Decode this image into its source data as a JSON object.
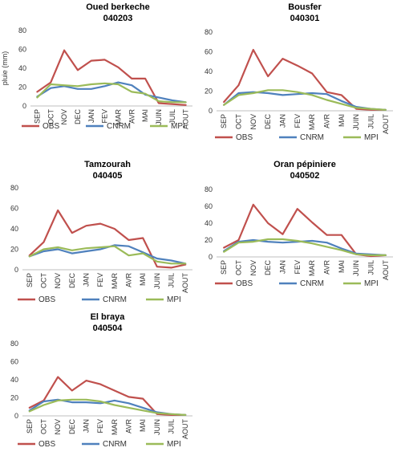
{
  "chart_data": [
    {
      "type": "line",
      "title": "Oued berkeche",
      "subtitle": "040203",
      "ylabel": "pluie (mm)",
      "xlabel": "",
      "ylim": [
        0,
        80
      ],
      "yticks": [
        0,
        20,
        40,
        60,
        80
      ],
      "categories": [
        "SEP",
        "OCT",
        "NOV",
        "DEC",
        "JAN",
        "FEV",
        "MAR",
        "AVR",
        "MAI",
        "JUIN",
        "JUIL",
        "AOUT"
      ],
      "series": [
        {
          "name": "OBS",
          "color": "#C0504D",
          "values": [
            15,
            25,
            59,
            38,
            48,
            49,
            41,
            29,
            29,
            3,
            2,
            1
          ]
        },
        {
          "name": "CNRM",
          "color": "#4F81BD",
          "values": [
            10,
            19,
            21,
            18,
            18,
            21,
            25,
            22,
            12,
            9,
            6,
            4
          ]
        },
        {
          "name": "MPI",
          "color": "#9BBB59",
          "values": [
            9,
            23,
            22,
            21,
            23,
            24,
            23,
            15,
            13,
            5,
            4,
            4
          ]
        }
      ],
      "legend": "bottom"
    },
    {
      "type": "line",
      "title": "Bousfer",
      "subtitle": "040301",
      "ylabel": "",
      "xlabel": "",
      "ylim": [
        0,
        80
      ],
      "yticks": [
        0,
        20,
        40,
        60,
        80
      ],
      "categories": [
        "SEP",
        "OCT",
        "NOV",
        "DEC",
        "JAN",
        "FEV",
        "MAR",
        "AVR",
        "MAI",
        "JUIN",
        "JUIL",
        "AOUT"
      ],
      "series": [
        {
          "name": "OBS",
          "color": "#C0504D",
          "values": [
            9,
            26,
            62,
            35,
            53,
            46,
            38,
            19,
            16,
            2,
            1,
            1
          ]
        },
        {
          "name": "CNRM",
          "color": "#4F81BD",
          "values": [
            6,
            18,
            19,
            18,
            16,
            17,
            18,
            17,
            10,
            4,
            2,
            1
          ]
        },
        {
          "name": "MPI",
          "color": "#9BBB59",
          "values": [
            6,
            16,
            18,
            21,
            21,
            19,
            16,
            11,
            7,
            3,
            2,
            1
          ]
        }
      ],
      "legend": "bottom"
    },
    {
      "type": "line",
      "title": "Tamzourah",
      "subtitle": "040405",
      "ylabel": "",
      "xlabel": "",
      "ylim": [
        0,
        80
      ],
      "yticks": [
        0,
        20,
        40,
        60,
        80
      ],
      "categories": [
        "SEP",
        "OCT",
        "NOV",
        "DEC",
        "JAN",
        "FEV",
        "MAR",
        "AVR",
        "MAI",
        "JUIN",
        "JUIL",
        "AOUT"
      ],
      "series": [
        {
          "name": "OBS",
          "color": "#C0504D",
          "values": [
            14,
            27,
            58,
            36,
            43,
            45,
            40,
            29,
            31,
            3,
            2,
            5
          ]
        },
        {
          "name": "CNRM",
          "color": "#4F81BD",
          "values": [
            13,
            18,
            20,
            16,
            18,
            20,
            24,
            23,
            17,
            11,
            9,
            6
          ]
        },
        {
          "name": "MPI",
          "color": "#9BBB59",
          "values": [
            13,
            20,
            22,
            19,
            21,
            22,
            23,
            14,
            16,
            8,
            6,
            6
          ]
        }
      ],
      "legend": "bottom"
    },
    {
      "type": "line",
      "title": "Oran pépiniere",
      "subtitle": "040502",
      "ylabel": "",
      "xlabel": "",
      "ylim": [
        0,
        80
      ],
      "yticks": [
        0,
        20,
        40,
        60,
        80
      ],
      "categories": [
        "SEP",
        "OCT",
        "NOV",
        "DEC",
        "JAN",
        "FEV",
        "MAR",
        "AVR",
        "MAI",
        "JUIN",
        "JUIL",
        "AOUT"
      ],
      "series": [
        {
          "name": "OBS",
          "color": "#C0504D",
          "values": [
            11,
            20,
            62,
            40,
            27,
            57,
            41,
            26,
            26,
            3,
            1,
            2
          ]
        },
        {
          "name": "CNRM",
          "color": "#4F81BD",
          "values": [
            7,
            18,
            20,
            18,
            17,
            18,
            19,
            17,
            10,
            4,
            3,
            2
          ]
        },
        {
          "name": "MPI",
          "color": "#9BBB59",
          "values": [
            6,
            17,
            18,
            21,
            21,
            19,
            16,
            12,
            8,
            3,
            2,
            2
          ]
        }
      ],
      "legend": "bottom"
    },
    {
      "type": "line",
      "title": "El braya",
      "subtitle": "040504",
      "ylabel": "",
      "xlabel": "",
      "ylim": [
        0,
        80
      ],
      "yticks": [
        0,
        20,
        40,
        60,
        80
      ],
      "categories": [
        "SEP",
        "OCT",
        "NOV",
        "DEC",
        "JAN",
        "FEV",
        "MAR",
        "AVR",
        "MAI",
        "JUIN",
        "JUIL",
        "AOUT"
      ],
      "series": [
        {
          "name": "OBS",
          "color": "#C0504D",
          "values": [
            9,
            17,
            43,
            28,
            39,
            35,
            28,
            21,
            19,
            2,
            1,
            1
          ]
        },
        {
          "name": "CNRM",
          "color": "#4F81BD",
          "values": [
            6,
            16,
            18,
            15,
            15,
            14,
            17,
            14,
            9,
            4,
            2,
            1
          ]
        },
        {
          "name": "MPI",
          "color": "#9BBB59",
          "values": [
            5,
            12,
            17,
            18,
            18,
            16,
            12,
            9,
            6,
            3,
            2,
            1
          ]
        }
      ],
      "legend": "bottom"
    }
  ]
}
